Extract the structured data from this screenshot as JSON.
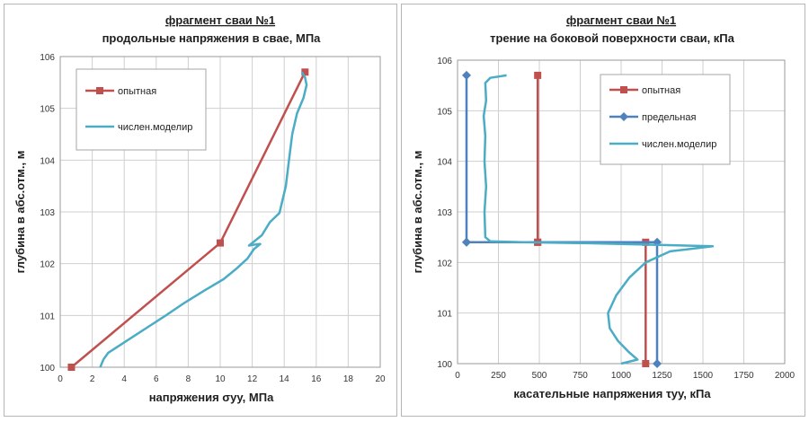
{
  "chart_data": [
    {
      "type": "line",
      "title": "фрагмент сваи №1",
      "subtitle": "продольные напряжения в свае, МПа",
      "xlabel": "напряжения σуу, МПа",
      "ylabel": "глубина в абс.отм., м",
      "xlim": [
        0,
        20
      ],
      "ylim": [
        100,
        106
      ],
      "xticks": [
        0,
        2,
        4,
        6,
        8,
        10,
        12,
        14,
        16,
        18,
        20
      ],
      "yticks": [
        100,
        101,
        102,
        103,
        104,
        105,
        106
      ],
      "grid": true,
      "legend_position": "top-left",
      "series": [
        {
          "name": "опытная",
          "color": "#c0504d",
          "marker": "square",
          "x": [
            0.7,
            10.0,
            15.3
          ],
          "y": [
            100.0,
            102.4,
            105.7
          ]
        },
        {
          "name": "числен.моделир",
          "color": "#4bacc6",
          "marker": "none",
          "x": [
            2.5,
            2.7,
            3.0,
            3.7,
            4.5,
            5.5,
            6.6,
            7.8,
            9.0,
            10.2,
            11.0,
            11.7,
            12.1,
            12.5,
            12.2,
            11.8,
            12.6,
            13.1,
            13.7,
            14.1,
            14.3,
            14.5,
            14.8,
            15.2,
            15.4,
            15.3,
            15.1
          ],
          "y": [
            100.0,
            100.15,
            100.28,
            100.42,
            100.58,
            100.78,
            101.0,
            101.25,
            101.48,
            101.7,
            101.9,
            102.1,
            102.28,
            102.38,
            102.37,
            102.35,
            102.55,
            102.8,
            102.98,
            103.5,
            104.0,
            104.5,
            104.9,
            105.2,
            105.45,
            105.6,
            105.7
          ]
        }
      ]
    },
    {
      "type": "line",
      "title": "фрагмент сваи №1",
      "subtitle": "трение на боковой поверхности сваи, кПа",
      "xlabel": "касательные напряжения τуу, кПа",
      "ylabel": "глубина в абс.отм., м",
      "xlim": [
        0,
        2000
      ],
      "ylim": [
        100,
        106
      ],
      "xticks": [
        0,
        250,
        500,
        750,
        1000,
        1250,
        1500,
        1750,
        2000
      ],
      "yticks": [
        100,
        101,
        102,
        103,
        104,
        105,
        106
      ],
      "grid": true,
      "legend_position": "top-right",
      "series": [
        {
          "name": "опытная",
          "color": "#c0504d",
          "marker": "square",
          "x": [
            490,
            490,
            490,
            1150,
            1150
          ],
          "y": [
            105.7,
            102.4,
            102.4,
            102.4,
            100.0
          ]
        },
        {
          "name": "предельная",
          "color": "#4f81bd",
          "marker": "diamond",
          "x": [
            55,
            55,
            55,
            1220,
            1220
          ],
          "y": [
            105.7,
            102.4,
            102.4,
            102.4,
            100.0
          ]
        },
        {
          "name": "числен.моделир",
          "color": "#4bacc6",
          "marker": "none",
          "x": [
            300,
            200,
            170,
            175,
            160,
            170,
            165,
            175,
            165,
            170,
            200,
            400,
            800,
            1200,
            1560,
            1300,
            1150,
            1050,
            970,
            920,
            930,
            980,
            1050,
            1100,
            1000
          ],
          "y": [
            105.7,
            105.65,
            105.55,
            105.2,
            104.9,
            104.5,
            104.0,
            103.5,
            103.0,
            102.5,
            102.42,
            102.4,
            102.38,
            102.35,
            102.32,
            102.22,
            102.0,
            101.7,
            101.35,
            101.0,
            100.7,
            100.45,
            100.22,
            100.08,
            100.0
          ]
        }
      ]
    }
  ]
}
